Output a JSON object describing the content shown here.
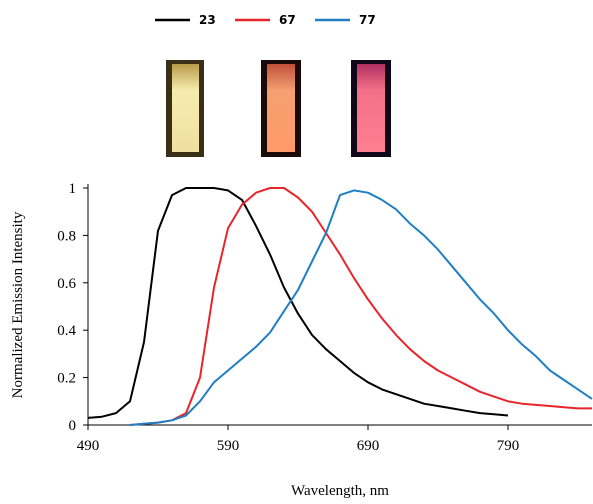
{
  "chart_data": {
    "type": "line",
    "x_label": "Wavelength, nm",
    "y_label": "Normalized Emission Intensity",
    "x": [
      490,
      500,
      510,
      520,
      530,
      540,
      550,
      560,
      570,
      580,
      590,
      600,
      610,
      620,
      630,
      640,
      650,
      660,
      670,
      680,
      690,
      700,
      710,
      720,
      730,
      740,
      750,
      760,
      770,
      780,
      790,
      800,
      810,
      820,
      830,
      840,
      850
    ],
    "series": [
      {
        "name": "23",
        "color": "#000000",
        "values": [
          0.03,
          0.035,
          0.05,
          0.1,
          0.35,
          0.82,
          0.97,
          1,
          1,
          1,
          0.99,
          0.95,
          0.84,
          0.72,
          0.58,
          0.47,
          0.38,
          0.32,
          0.27,
          0.22,
          0.18,
          0.15,
          0.13,
          0.11,
          0.09,
          0.08,
          0.07,
          0.06,
          0.05,
          0.045,
          0.04,
          null,
          null,
          null,
          null,
          null,
          null
        ]
      },
      {
        "name": "67",
        "color": "#e8252b",
        "values": [
          null,
          null,
          null,
          0,
          0.005,
          0.01,
          0.02,
          0.05,
          0.2,
          0.58,
          0.83,
          0.93,
          0.98,
          1,
          1,
          0.96,
          0.9,
          0.81,
          0.72,
          0.62,
          0.53,
          0.45,
          0.38,
          0.32,
          0.27,
          0.23,
          0.2,
          0.17,
          0.14,
          0.12,
          0.1,
          0.09,
          0.085,
          0.08,
          0.075,
          0.07,
          0.07
        ]
      },
      {
        "name": "77",
        "color": "#1f7fc4",
        "values": [
          null,
          null,
          null,
          0,
          0.005,
          0.01,
          0.02,
          0.04,
          0.1,
          0.18,
          0.23,
          0.28,
          0.33,
          0.39,
          0.48,
          0.57,
          0.69,
          0.81,
          0.97,
          0.99,
          0.98,
          0.95,
          0.91,
          0.85,
          0.8,
          0.74,
          0.67,
          0.6,
          0.53,
          0.47,
          0.4,
          0.34,
          0.29,
          0.23,
          0.19,
          0.15,
          0.11
        ]
      }
    ],
    "xlim": [
      490,
      850
    ],
    "xticks": [
      490,
      590,
      690,
      790
    ],
    "ylim": [
      0,
      1
    ],
    "yticks": [
      0,
      0.2,
      0.4,
      0.6,
      0.8,
      1
    ],
    "grid": false
  }
}
